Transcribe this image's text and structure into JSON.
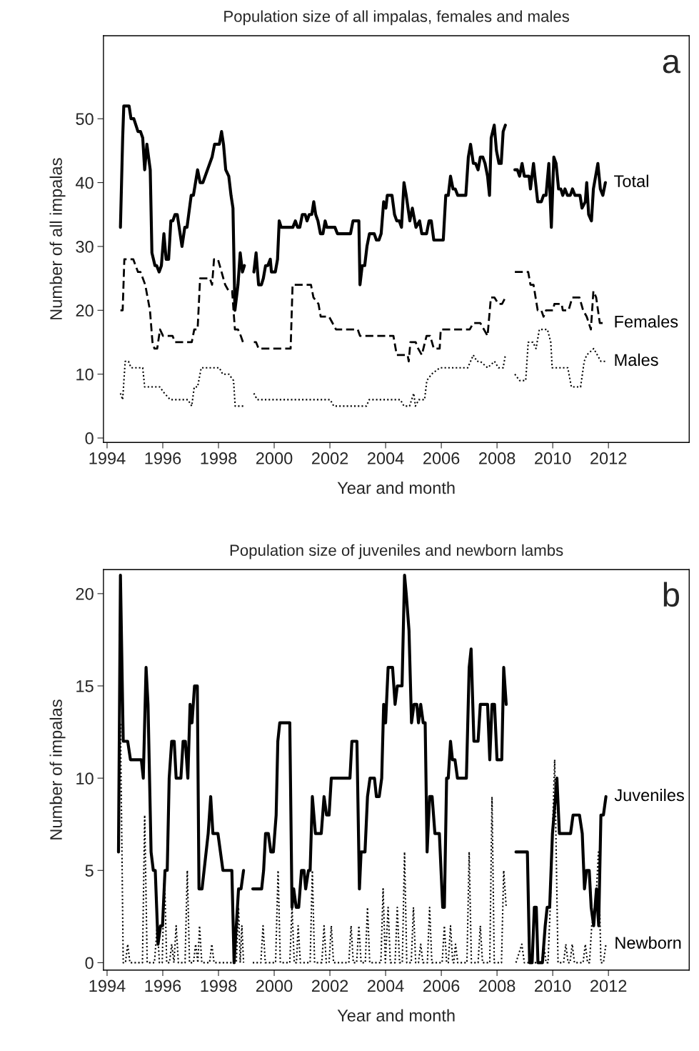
{
  "chart_data": [
    {
      "type": "line",
      "title": "Population size of all impalas, females and males",
      "xlabel": "Year and month",
      "ylabel": "Number of all impalas",
      "annotations": [
        "a"
      ],
      "xlim": [
        1993.87,
        2014.9
      ],
      "xticks": [
        1994,
        1996,
        1998,
        2000,
        2002,
        2004,
        2006,
        2008,
        2010,
        2012
      ],
      "ylim": [
        -0.7,
        63
      ],
      "yticks": [
        0,
        10,
        20,
        30,
        40,
        50
      ],
      "series": [
        {
          "name": "Total",
          "color": "#000000",
          "line_style": "solid",
          "x": [
            1994.48,
            1994.56,
            1994.6,
            1994.79,
            1994.86,
            1994.96,
            1995.11,
            1995.2,
            1995.28,
            1995.35,
            1995.43,
            1995.55,
            1995.61,
            1995.72,
            1995.78,
            1995.87,
            1995.95,
            1996.04,
            1996.12,
            1996.21,
            1996.29,
            1996.36,
            1996.44,
            1996.52,
            1996.69,
            1996.79,
            1996.87,
            1996.93,
            1997.02,
            1997.1,
            1997.25,
            1997.34,
            1997.44,
            1997.77,
            1997.86,
            1998.03,
            1998.11,
            1998.18,
            1998.26,
            1998.37,
            1998.45,
            1998.52,
            1998.59,
            1998.7,
            1998.78,
            1998.86,
            1998.93,
            1999.05,
            1999.27,
            1999.35,
            1999.44,
            1999.54,
            1999.61,
            1999.69,
            1999.77,
            1999.86,
            1999.9,
            2000.04,
            2000.12,
            2000.18,
            2000.25,
            2000.67,
            2000.76,
            2000.84,
            2000.92,
            2001.01,
            2001.11,
            2001.18,
            2001.26,
            2001.35,
            2001.42,
            2001.49,
            2001.57,
            2001.66,
            2001.75,
            2001.83,
            2001.89,
            2002.18,
            2002.27,
            2002.74,
            2002.83,
            2003.04,
            2003.08,
            2003.16,
            2003.25,
            2003.33,
            2003.42,
            2003.59,
            2003.67,
            2003.76,
            2003.84,
            2003.93,
            2004.01,
            2004.06,
            2004.23,
            2004.32,
            2004.4,
            2004.49,
            2004.57,
            2004.66,
            2004.74,
            2004.87,
            2004.96,
            2005.09,
            2005.22,
            2005.3,
            2005.47,
            2005.56,
            2005.64,
            2005.73,
            2006.07,
            2006.16,
            2006.25,
            2006.33,
            2006.42,
            2006.5,
            2006.59,
            2006.88,
            2006.97,
            2007.05,
            2007.15,
            2007.23,
            2007.32,
            2007.4,
            2007.49,
            2007.57,
            2007.66,
            2007.73,
            2007.79,
            2007.9,
            2007.98,
            2008.07,
            2008.15,
            2008.22,
            2008.3,
            2008.45,
            2008.64,
            2008.73,
            2008.81,
            2008.9,
            2008.98,
            2009.15,
            2009.2,
            2009.31,
            2009.46,
            2009.59,
            2009.67,
            2009.76,
            2009.86,
            2009.95,
            2010.04,
            2010.12,
            2010.21,
            2010.29,
            2010.36,
            2010.44,
            2010.53,
            2010.63,
            2010.71,
            2010.8,
            2010.98,
            2011.05,
            2011.17,
            2011.22,
            2011.29,
            2011.39,
            2011.46,
            2011.54,
            2011.62,
            2011.71,
            2011.8,
            2011.89
          ],
          "values": [
            33,
            47,
            52,
            52,
            50,
            50,
            48,
            48,
            47,
            42,
            46,
            42,
            29,
            27,
            27,
            26,
            27,
            32,
            28,
            28,
            34,
            34,
            35,
            35,
            30,
            33,
            33,
            35,
            38,
            38,
            42,
            40,
            40,
            44,
            46,
            46,
            48,
            46,
            42,
            41,
            38,
            36,
            20,
            24,
            29,
            26,
            27,
            null,
            26,
            29,
            24,
            24,
            25,
            27,
            27,
            28,
            26,
            26,
            28,
            34,
            33,
            33,
            34,
            33,
            33,
            35,
            35,
            34,
            35,
            35,
            37,
            35,
            34,
            32,
            32,
            34,
            33,
            33,
            32,
            32,
            34,
            34,
            24,
            27,
            27,
            30,
            32,
            32,
            31,
            31,
            32,
            37,
            36,
            38,
            38,
            35,
            34,
            34,
            33,
            40,
            38,
            34,
            36,
            33,
            34,
            32,
            32,
            34,
            34,
            31,
            31,
            38,
            38,
            41,
            39,
            39,
            38,
            38,
            44,
            46,
            43,
            43,
            42,
            44,
            44,
            43,
            41,
            38,
            47,
            49,
            45,
            43,
            43,
            48,
            49,
            null,
            42,
            42,
            41,
            43,
            41,
            41,
            39,
            43,
            37,
            37,
            38,
            38,
            43,
            33,
            44,
            43,
            39,
            39,
            38,
            39,
            38,
            38,
            39,
            38,
            38,
            36,
            37,
            40,
            35,
            34,
            39,
            41,
            43,
            39,
            38,
            40
          ]
        },
        {
          "name": "Females",
          "color": "#000000",
          "line_style": "dashed",
          "x": [
            1994.48,
            1994.56,
            1994.62,
            1994.94,
            1995.11,
            1995.2,
            1995.37,
            1995.54,
            1995.63,
            1995.7,
            1995.8,
            1995.9,
            1996.01,
            1996.35,
            1996.44,
            1997.04,
            1997.13,
            1997.25,
            1997.34,
            1997.69,
            1997.77,
            1997.84,
            1997.98,
            1998.11,
            1998.24,
            1998.37,
            1998.49,
            1998.59,
            1998.7,
            1998.8,
            1998.88,
            1999.05,
            1999.27,
            1999.35,
            1999.44,
            2000.59,
            2000.66,
            2001.32,
            2001.41,
            2001.59,
            2001.67,
            2001.97,
            2002.22,
            2003.0,
            2003.08,
            2004.28,
            2004.4,
            2004.79,
            2004.83,
            2004.89,
            2005.08,
            2005.17,
            2005.3,
            2005.47,
            2005.6,
            2005.73,
            2005.94,
            2005.98,
            2007.02,
            2007.15,
            2007.4,
            2007.66,
            2007.78,
            2007.91,
            2008.05,
            2008.18,
            2008.3,
            2008.45,
            2008.64,
            2009.12,
            2009.2,
            2009.31,
            2009.46,
            2009.59,
            2009.67,
            2009.76,
            2010.01,
            2010.06,
            2010.32,
            2010.36,
            2010.57,
            2010.7,
            2010.96,
            2011.09,
            2011.22,
            2011.37,
            2011.46,
            2011.56,
            2011.69,
            2011.89
          ],
          "values": [
            20,
            20,
            28,
            28,
            26,
            26,
            24,
            20,
            15,
            14,
            14,
            17,
            16,
            16,
            15,
            15,
            17,
            17,
            25,
            25,
            24,
            28,
            28,
            26,
            24,
            23,
            23,
            17,
            17,
            16,
            15,
            null,
            15,
            15,
            14,
            14,
            24,
            24,
            22,
            21,
            19,
            19,
            17,
            17,
            16,
            16,
            13,
            13,
            12,
            15,
            15,
            14,
            13,
            16,
            16,
            14,
            14,
            17,
            17,
            18,
            18,
            16,
            22,
            22,
            21,
            21,
            22,
            null,
            26,
            26,
            24,
            24,
            20,
            20,
            19,
            20,
            20,
            21,
            21,
            20,
            20,
            22,
            22,
            20,
            19,
            17,
            23,
            22,
            18,
            18
          ]
        },
        {
          "name": "Males",
          "color": "#000000",
          "line_style": "dotted",
          "x": [
            1994.48,
            1994.56,
            1994.65,
            1994.77,
            1994.86,
            1995.28,
            1995.35,
            1995.89,
            1996.06,
            1996.27,
            1996.9,
            1997.04,
            1997.13,
            1997.25,
            1997.38,
            1998.03,
            1998.15,
            1998.37,
            1998.54,
            1998.6,
            1998.93,
            1999.05,
            1999.27,
            1999.39,
            2002.01,
            2002.14,
            2003.31,
            2003.41,
            2004.53,
            2004.66,
            2004.86,
            2005.01,
            2005.07,
            2005.19,
            2005.4,
            2005.48,
            2005.65,
            2005.95,
            2006.95,
            2007.15,
            2007.28,
            2007.4,
            2007.66,
            2007.91,
            2008.05,
            2008.22,
            2008.3,
            2008.45,
            2008.64,
            2008.81,
            2009.03,
            2009.12,
            2009.29,
            2009.4,
            2009.52,
            2009.81,
            2009.93,
            2009.98,
            2010.54,
            2010.67,
            2011.0,
            2011.13,
            2011.22,
            2011.47,
            2011.6,
            2011.73,
            2011.89
          ],
          "values": [
            7,
            6,
            12,
            12,
            11,
            11,
            8,
            8,
            7,
            6,
            6,
            5,
            8,
            8,
            11,
            11,
            10,
            10,
            9,
            5,
            5,
            null,
            7,
            6,
            6,
            5,
            5,
            6,
            6,
            5,
            5,
            7,
            5,
            6,
            6,
            9,
            10,
            11,
            11,
            13,
            12,
            12,
            11,
            12,
            11,
            11,
            13,
            null,
            10,
            9,
            9,
            15,
            15,
            14,
            17,
            17,
            15,
            11,
            11,
            8,
            8,
            12,
            13,
            14,
            13,
            12,
            12
          ]
        }
      ]
    },
    {
      "type": "line",
      "title": "Population size of juveniles and newborn lambs",
      "xlabel": "Year and month",
      "ylabel": "Number of impalas",
      "annotations": [
        "b"
      ],
      "xlim": [
        1993.87,
        2014.9
      ],
      "xticks": [
        1994,
        1996,
        1998,
        2000,
        2002,
        2004,
        2006,
        2008,
        2010,
        2012
      ],
      "ylim": [
        -0.4,
        21.3
      ],
      "yticks": [
        0,
        5,
        10,
        15,
        20
      ],
      "series": [
        {
          "name": "Juveniles",
          "color": "#000000",
          "line_style": "solid",
          "x": [
            1994.41,
            1994.48,
            1994.58,
            1994.74,
            1994.84,
            1995.23,
            1995.3,
            1995.4,
            1995.47,
            1995.58,
            1995.66,
            1995.73,
            1995.83,
            1995.92,
            1995.99,
            1996.08,
            1996.16,
            1996.23,
            1996.32,
            1996.41,
            1996.48,
            1996.65,
            1996.73,
            1996.81,
            1996.9,
            1996.98,
            1997.05,
            1997.14,
            1997.24,
            1997.3,
            1997.41,
            1997.63,
            1997.72,
            1997.8,
            1997.98,
            1998.16,
            1998.48,
            1998.56,
            1998.72,
            1998.81,
            1998.9,
            1999.05,
            1999.23,
            1999.55,
            1999.62,
            1999.69,
            1999.79,
            1999.88,
            1999.97,
            2000.07,
            2000.13,
            2000.2,
            2000.56,
            2000.64,
            2000.7,
            2000.79,
            2000.88,
            2000.98,
            2001.07,
            2001.13,
            2001.23,
            2001.29,
            2001.37,
            2001.48,
            2001.69,
            2001.79,
            2001.88,
            2001.97,
            2002.05,
            2002.72,
            2002.79,
            2002.97,
            2003.06,
            2003.12,
            2003.26,
            2003.35,
            2003.44,
            2003.6,
            2003.67,
            2003.77,
            2003.86,
            2003.93,
            2004.0,
            2004.09,
            2004.25,
            2004.34,
            2004.42,
            2004.59,
            2004.68,
            2004.74,
            2004.84,
            2004.93,
            2005.02,
            2005.12,
            2005.18,
            2005.26,
            2005.35,
            2005.42,
            2005.49,
            2005.58,
            2005.67,
            2005.77,
            2005.93,
            2006.05,
            2006.11,
            2006.19,
            2006.25,
            2006.33,
            2006.4,
            2006.49,
            2006.58,
            2006.9,
            2007.0,
            2007.07,
            2007.17,
            2007.32,
            2007.4,
            2007.66,
            2007.74,
            2007.82,
            2007.91,
            2008.0,
            2008.17,
            2008.24,
            2008.33,
            2008.5,
            2008.68,
            2009.09,
            2009.17,
            2009.26,
            2009.34,
            2009.41,
            2009.47,
            2009.63,
            2009.73,
            2009.8,
            2009.89,
            2009.99,
            2010.1,
            2010.15,
            2010.24,
            2010.64,
            2010.73,
            2010.96,
            2011.06,
            2011.14,
            2011.21,
            2011.31,
            2011.38,
            2011.47,
            2011.57,
            2011.65,
            2011.73,
            2011.82,
            2011.91
          ],
          "values": [
            6,
            21,
            12,
            12,
            11,
            11,
            10,
            16,
            14,
            6,
            5,
            5,
            1,
            2,
            2,
            5,
            5,
            10,
            12,
            12,
            10,
            10,
            12,
            12,
            10,
            14,
            13,
            15,
            15,
            4,
            4,
            7,
            9,
            7,
            7,
            5,
            5,
            0,
            4,
            4,
            5,
            null,
            4,
            4,
            5,
            7,
            7,
            6,
            6,
            8,
            12,
            13,
            13,
            3,
            4,
            3,
            3,
            5,
            5,
            4,
            5,
            5,
            9,
            7,
            7,
            9,
            8,
            8,
            10,
            10,
            12,
            12,
            4,
            6,
            6,
            9,
            10,
            10,
            9,
            9,
            10,
            14,
            13,
            16,
            16,
            14,
            15,
            15,
            21,
            20,
            18,
            13,
            14,
            14,
            13,
            14,
            13,
            13,
            6,
            9,
            9,
            7,
            7,
            3,
            3,
            10,
            10,
            12,
            11,
            11,
            10,
            10,
            16,
            17,
            12,
            12,
            14,
            14,
            11,
            14,
            14,
            11,
            11,
            16,
            14,
            null,
            6,
            6,
            0,
            0,
            3,
            3,
            0,
            0,
            2,
            3,
            3,
            7,
            9,
            10,
            7,
            7,
            8,
            8,
            7,
            4,
            5,
            5,
            3,
            2,
            4,
            2,
            8,
            8,
            9
          ]
        },
        {
          "name": "Newborn",
          "color": "#000000",
          "line_style": "dotted",
          "x": [
            1994.41,
            1994.48,
            1994.58,
            1994.66,
            1994.74,
            1994.82,
            1995.27,
            1995.35,
            1995.44,
            1995.7,
            1995.8,
            1995.88,
            1995.98,
            1996.06,
            1996.14,
            1996.24,
            1996.32,
            1996.4,
            1996.48,
            1996.56,
            1996.8,
            1996.88,
            1996.96,
            1997.1,
            1997.18,
            1997.26,
            1997.32,
            1997.4,
            1997.68,
            1997.76,
            1997.84,
            1998.64,
            1998.72,
            1998.78,
            1998.84,
            1998.9,
            1999.05,
            1999.23,
            1999.52,
            1999.6,
            1999.68,
            2000.05,
            2000.14,
            2000.22,
            2000.56,
            2000.64,
            2000.72,
            2000.8,
            2000.86,
            2000.94,
            2001.29,
            2001.37,
            2001.45,
            2001.71,
            2001.79,
            2001.87,
            2001.97,
            2002.05,
            2002.13,
            2002.68,
            2002.76,
            2002.84,
            2002.96,
            2003.04,
            2003.12,
            2003.27,
            2003.35,
            2003.43,
            2003.83,
            2003.91,
            2003.99,
            2004.09,
            2004.17,
            2004.34,
            2004.42,
            2004.5,
            2004.6,
            2004.68,
            2004.76,
            2004.92,
            2005.0,
            2005.08,
            2005.18,
            2005.26,
            2005.34,
            2005.5,
            2005.58,
            2005.66,
            2006.03,
            2006.11,
            2006.19,
            2006.25,
            2006.33,
            2006.41,
            2006.45,
            2006.51,
            2006.59,
            2006.92,
            2007.0,
            2007.08,
            2007.32,
            2007.4,
            2007.48,
            2007.74,
            2007.82,
            2007.9,
            2008.16,
            2008.24,
            2008.33,
            2008.5,
            2008.68,
            2008.89,
            2008.98,
            2009.6,
            2009.68,
            2009.76,
            2009.83,
            2009.91,
            2010.07,
            2010.19,
            2010.39,
            2010.47,
            2010.55,
            2010.62,
            2010.7,
            2010.78,
            2011.09,
            2011.17,
            2011.25,
            2011.32,
            2011.4,
            2011.54,
            2011.64,
            2011.73,
            2011.82,
            2011.91
          ],
          "values": [
            6,
            13,
            0,
            0,
            1,
            0,
            0,
            8,
            0,
            0,
            2,
            0,
            0,
            5,
            0,
            0,
            1,
            0,
            2,
            0,
            0,
            5,
            0,
            0,
            1,
            0,
            2,
            0,
            0,
            1,
            0,
            0,
            3,
            0,
            2,
            0,
            null,
            0,
            0,
            2,
            0,
            0,
            5,
            0,
            0,
            3,
            0,
            0,
            2,
            0,
            0,
            5,
            0,
            0,
            2,
            0,
            0,
            2,
            0,
            0,
            2,
            0,
            0,
            2,
            0,
            0,
            3,
            0,
            0,
            4,
            0,
            3,
            0,
            0,
            3,
            0,
            0,
            6,
            0,
            0,
            3,
            0,
            0,
            1,
            0,
            0,
            3,
            0,
            0,
            2,
            0,
            0,
            2,
            0,
            0,
            1,
            0,
            0,
            6,
            0,
            0,
            2,
            0,
            0,
            9,
            0,
            0,
            5,
            3,
            null,
            0,
            1,
            0,
            0,
            1,
            0,
            0,
            3,
            11,
            0,
            0,
            1,
            0,
            0,
            1,
            0,
            0,
            1,
            0,
            0,
            2,
            3,
            6,
            0,
            0,
            1
          ]
        }
      ]
    }
  ]
}
